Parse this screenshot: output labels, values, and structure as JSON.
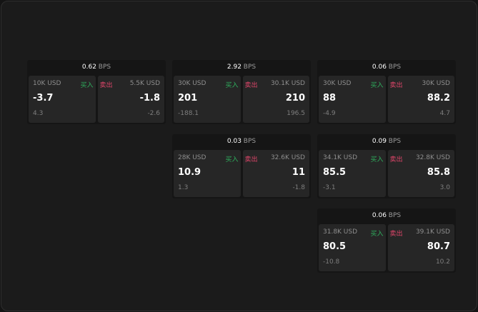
{
  "unit": "BPS",
  "buy_label": "买入",
  "sell_label": "卖出",
  "colors": {
    "buy": "#2fae5d",
    "sell": "#e0456a"
  },
  "cards": [
    {
      "spread": "0.62",
      "bid": {
        "size": "10K USD",
        "price": "-3.7",
        "change": "4.3"
      },
      "ask": {
        "size": "5.5K USD",
        "price": "-1.8",
        "change": "-2.6"
      }
    },
    {
      "spread": "2.92",
      "bid": {
        "size": "30K USD",
        "price": "201",
        "change": "-188.1"
      },
      "ask": {
        "size": "30.1K USD",
        "price": "210",
        "change": "196.5"
      }
    },
    {
      "spread": "0.06",
      "bid": {
        "size": "30K USD",
        "price": "88",
        "change": "-4.9"
      },
      "ask": {
        "size": "30K USD",
        "price": "88.2",
        "change": "4.7"
      }
    },
    {
      "spread": "0.03",
      "bid": {
        "size": "28K USD",
        "price": "10.9",
        "change": "1.3"
      },
      "ask": {
        "size": "32.6K USD",
        "price": "11",
        "change": "-1.8"
      }
    },
    {
      "spread": "0.09",
      "bid": {
        "size": "34.1K USD",
        "price": "85.5",
        "change": "-3.1"
      },
      "ask": {
        "size": "32.8K USD",
        "price": "85.8",
        "change": "3.0"
      }
    },
    {
      "spread": "0.06",
      "bid": {
        "size": "31.8K USD",
        "price": "80.5",
        "change": "-10.8"
      },
      "ask": {
        "size": "39.1K USD",
        "price": "80.7",
        "change": "10.2"
      }
    }
  ]
}
